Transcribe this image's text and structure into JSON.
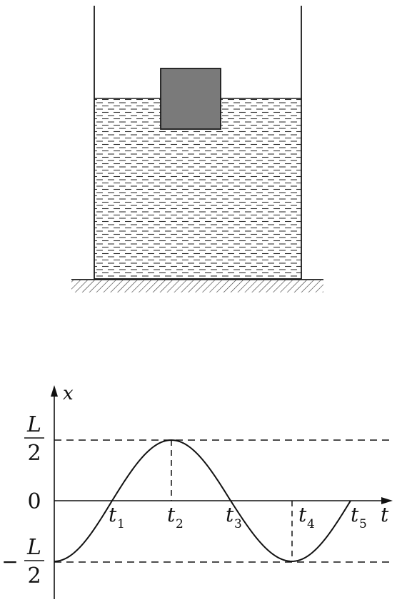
{
  "figure": {
    "container": {
      "fill_color": "#ffffff",
      "stroke_color": "#1a1a1a"
    },
    "block": {
      "fill_color": "#7a7a7a",
      "stroke_color": "#1a1a1a"
    },
    "liquid": {
      "dash_color": "#333333"
    }
  },
  "graph": {
    "y_axis_label": "x",
    "x_axis_label": "t",
    "y_ticks": {
      "top": {
        "numerator": "L",
        "denominator": "2"
      },
      "zero": "0",
      "bottom": {
        "sign": "−",
        "numerator": "L",
        "denominator": "2"
      }
    },
    "t_labels": [
      {
        "base": "t",
        "sub": "1"
      },
      {
        "base": "t",
        "sub": "2"
      },
      {
        "base": "t",
        "sub": "3"
      },
      {
        "base": "t",
        "sub": "4"
      },
      {
        "base": "t",
        "sub": "5"
      }
    ],
    "curve": {
      "type": "sinusoid",
      "amplitude": "L/2",
      "starts_at": "-L/2",
      "color": "#111111"
    }
  }
}
